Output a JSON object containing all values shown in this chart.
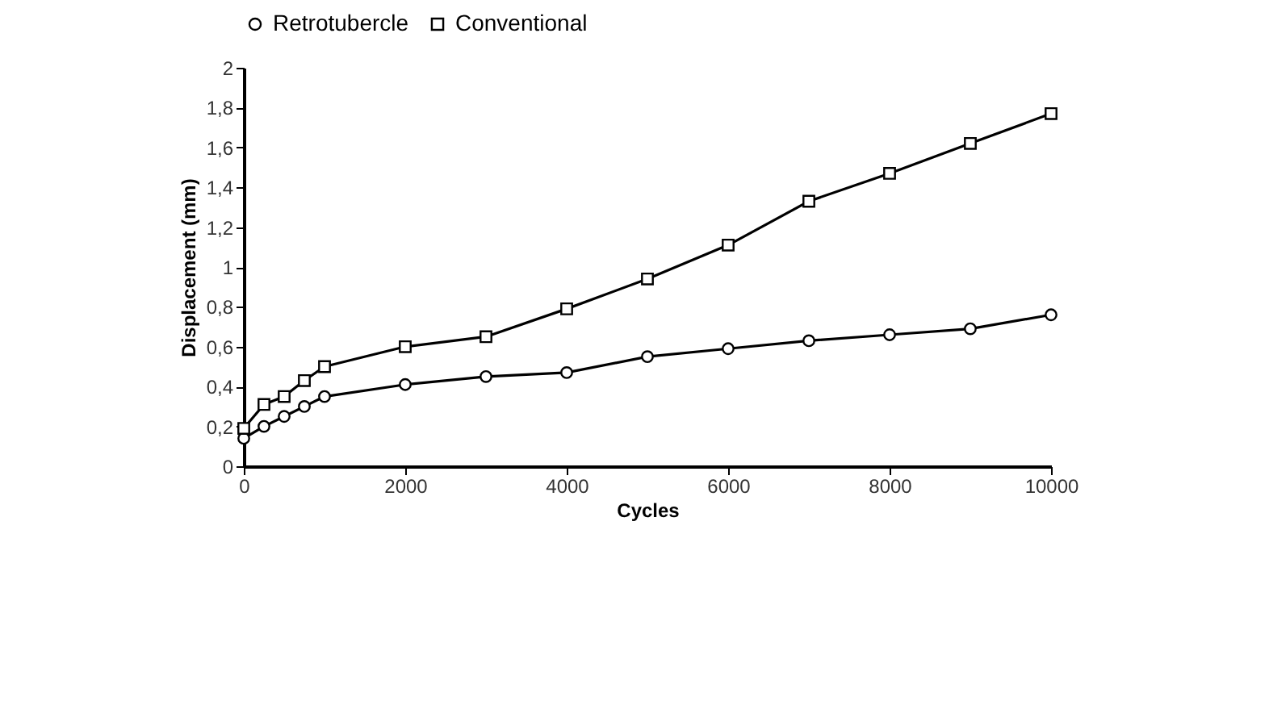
{
  "chart_data": {
    "type": "line",
    "xlabel": "Cycles",
    "ylabel": "Displacement (mm)",
    "x": [
      0,
      250,
      500,
      750,
      1000,
      2000,
      3000,
      4000,
      5000,
      6000,
      7000,
      8000,
      9000,
      10000
    ],
    "series": [
      {
        "name": "Retrotubercle",
        "color": "#000000",
        "marker": "circle",
        "values": [
          0.14,
          0.2,
          0.25,
          0.3,
          0.35,
          0.41,
          0.45,
          0.47,
          0.55,
          0.59,
          0.63,
          0.66,
          0.69,
          0.76
        ]
      },
      {
        "name": "Conventional",
        "color": "#000000",
        "marker": "square",
        "values": [
          0.19,
          0.31,
          0.35,
          0.43,
          0.5,
          0.6,
          0.65,
          0.79,
          0.94,
          1.11,
          1.33,
          1.47,
          1.62,
          1.77
        ]
      }
    ],
    "xlim": [
      0,
      10000
    ],
    "xticks": [
      0,
      2000,
      4000,
      6000,
      8000,
      10000
    ],
    "ylim": [
      0,
      2
    ],
    "yticks": [
      0,
      {
        "value": 0.2,
        "label": "0,2"
      },
      {
        "value": 0.4,
        "label": "0,4"
      },
      {
        "value": 0.6,
        "label": "0,6"
      },
      {
        "value": 0.8,
        "label": "0,8"
      },
      1,
      {
        "value": 1.2,
        "label": "1,2"
      },
      {
        "value": 1.4,
        "label": "1,4"
      },
      {
        "value": 1.6,
        "label": "1,6"
      },
      {
        "value": 1.8,
        "label": "1,8"
      },
      2
    ],
    "grid": false,
    "legend": "top",
    "line_style": "solid"
  }
}
